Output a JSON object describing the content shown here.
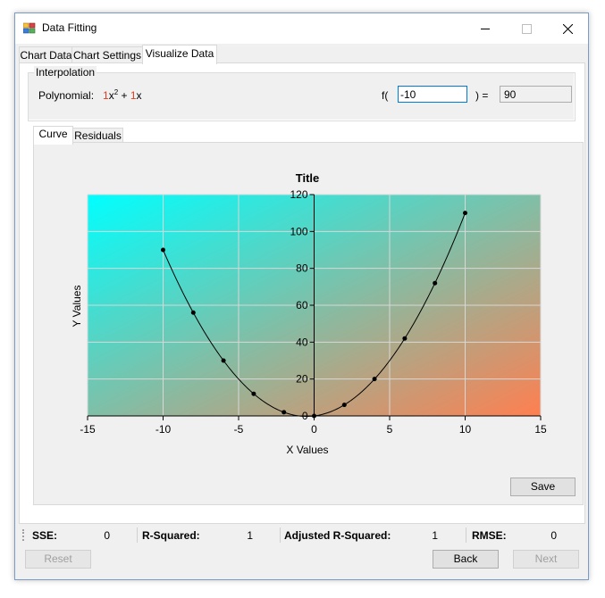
{
  "window": {
    "title": "Data Fitting"
  },
  "tabs": [
    {
      "label": "Chart Data"
    },
    {
      "label": "Chart Settings"
    },
    {
      "label": "Visualize Data"
    }
  ],
  "interpolation": {
    "group_label": "Interpolation",
    "polynomial_label": "Polynomial:",
    "term1_coef": "1",
    "term1_var": "x",
    "term1_exp": "2",
    "plus": " + ",
    "term2_coef": "1",
    "term2_var": "x",
    "f_open": "f(",
    "input_value": "-10",
    "f_close": ") =",
    "result": "90"
  },
  "inner_tabs": [
    {
      "label": "Curve"
    },
    {
      "label": "Residuals"
    }
  ],
  "chart_data": {
    "type": "scatter",
    "title": "Title",
    "xlabel": "X Values",
    "ylabel": "Y Values",
    "xlim": [
      -15,
      15
    ],
    "ylim": [
      0,
      120
    ],
    "x_ticks": [
      "-15",
      "-10",
      "-5",
      "0",
      "5",
      "10",
      "15"
    ],
    "y_ticks": [
      "0",
      "20",
      "40",
      "60",
      "80",
      "100",
      "120"
    ],
    "grid": true,
    "series": [
      {
        "x": [
          -10,
          -8,
          -6,
          -4,
          -2,
          0,
          2,
          4,
          6,
          8,
          10
        ],
        "y": [
          90,
          56,
          30,
          12,
          2,
          0,
          6,
          20,
          42,
          72,
          110
        ],
        "curve": "1x^2 + 1x"
      }
    ],
    "background_gradient": [
      "#00ffff",
      "#ff7f50"
    ]
  },
  "buttons": {
    "save": "Save",
    "reset": "Reset",
    "back": "Back",
    "next": "Next"
  },
  "status": {
    "sse_label": "SSE:",
    "sse_value": "0",
    "r2_label": "R-Squared:",
    "r2_value": "1",
    "adj_r2_label": "Adjusted R-Squared:",
    "adj_r2_value": "1",
    "rmse_label": "RMSE:",
    "rmse_value": "0"
  },
  "colors": {
    "accent": "#0078d7",
    "coef": "#e03c1f"
  }
}
